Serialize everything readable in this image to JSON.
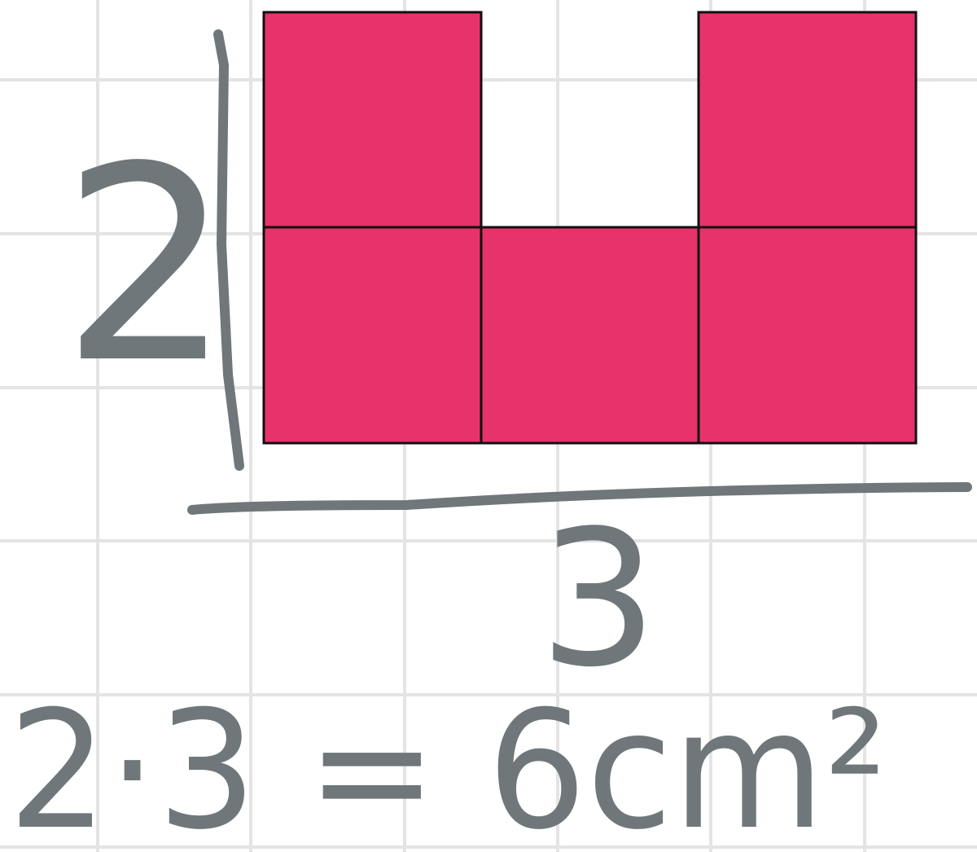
{
  "labels": {
    "height": "2",
    "width": "3",
    "equation": "2·3 = 6cm²"
  }
}
